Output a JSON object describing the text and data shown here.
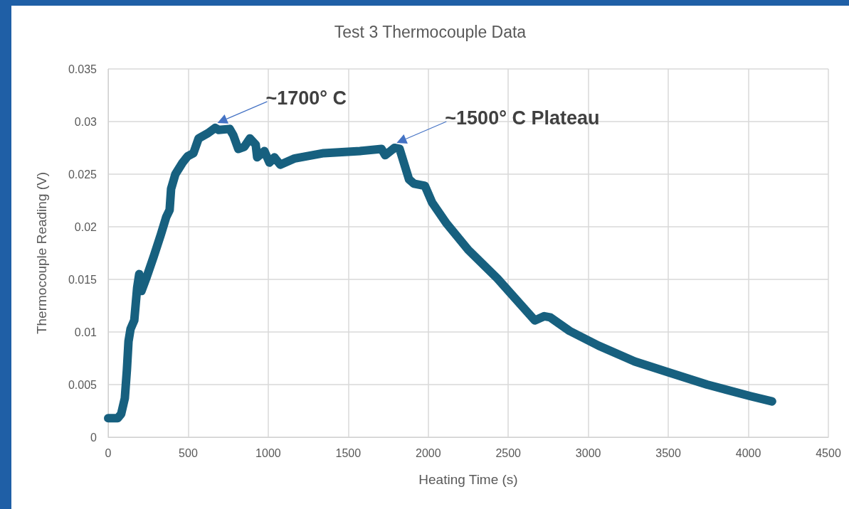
{
  "chart_data": {
    "type": "line",
    "title": "Test 3 Thermocouple Data",
    "xlabel": "Heating Time (s)",
    "ylabel": "Thermocouple Reading (V)",
    "xlim": [
      0,
      4500
    ],
    "xticks": [
      0,
      500,
      1000,
      1500,
      2000,
      2500,
      3000,
      3500,
      4000,
      4500
    ],
    "ylim": [
      0,
      0.035
    ],
    "yticks": [
      0,
      0.005,
      0.01,
      0.015,
      0.02,
      0.025,
      0.03,
      0.035
    ],
    "grid": true,
    "line_style": "solid",
    "series": [
      {
        "color": "#17607f",
        "x": [
          0,
          59,
          81,
          104,
          117,
          127,
          140,
          163,
          181,
          194,
          208,
          240,
          285,
          330,
          362,
          384,
          393,
          420,
          465,
          497,
          533,
          565,
          624,
          669,
          691,
          759,
          782,
          813,
          850,
          886,
          922,
          931,
          976,
          1008,
          1039,
          1075,
          1166,
          1347,
          1573,
          1708,
          1731,
          1789,
          1821,
          1880,
          1911,
          1979,
          2024,
          2115,
          2250,
          2431,
          2666,
          2725,
          2761,
          2883,
          3064,
          3290,
          3515,
          3742,
          4013,
          4148
        ],
        "values": [
          0.0018,
          0.0018,
          0.0022,
          0.0037,
          0.0064,
          0.0091,
          0.0103,
          0.0111,
          0.0142,
          0.0155,
          0.0139,
          0.0152,
          0.0172,
          0.0193,
          0.0209,
          0.0216,
          0.0236,
          0.025,
          0.0261,
          0.0267,
          0.027,
          0.0284,
          0.0289,
          0.0294,
          0.0292,
          0.0293,
          0.0287,
          0.0274,
          0.0276,
          0.0284,
          0.0278,
          0.0266,
          0.0272,
          0.0261,
          0.0266,
          0.0259,
          0.0265,
          0.027,
          0.0272,
          0.0274,
          0.0268,
          0.0275,
          0.0274,
          0.0245,
          0.0241,
          0.0239,
          0.0223,
          0.0203,
          0.0178,
          0.0151,
          0.0111,
          0.0115,
          0.0114,
          0.0101,
          0.0087,
          0.0072,
          0.0061,
          0.005,
          0.0039,
          0.0034
        ]
      }
    ],
    "annotations": [
      {
        "text": "~1700° C",
        "x": 669,
        "y": 0.0294
      },
      {
        "text": "~1500° C Plateau",
        "x": 1789,
        "y": 0.0275
      }
    ]
  }
}
